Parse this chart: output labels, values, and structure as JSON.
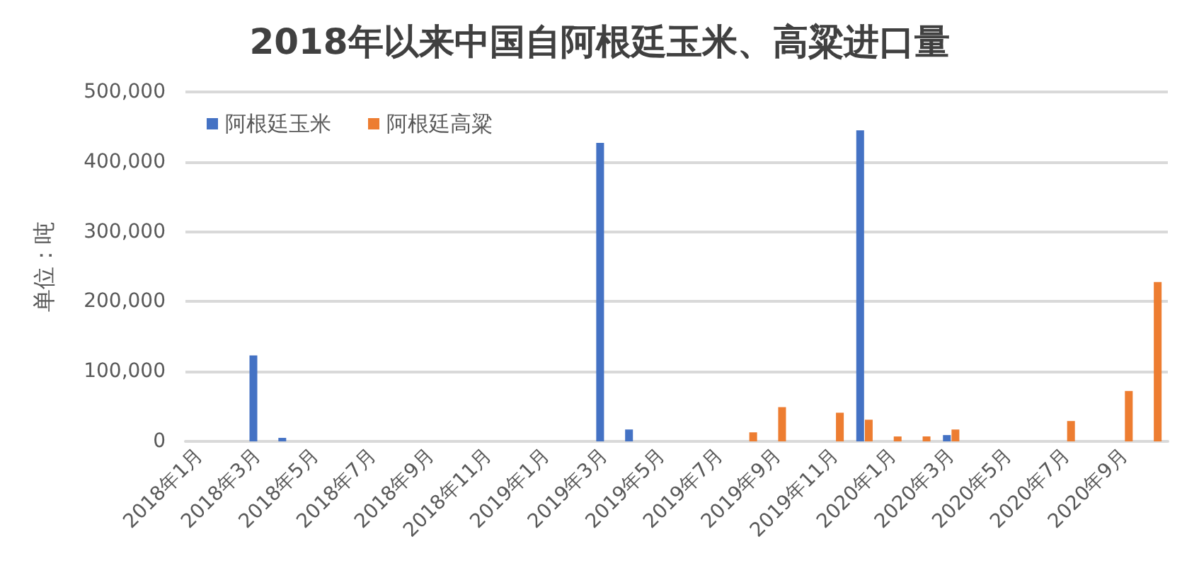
{
  "chart_data": {
    "type": "bar",
    "title": "2018年以来中国自阿根廷玉米、高粱进口量",
    "ylabel": "单位：吨",
    "categories": [
      "2018年1月",
      null,
      "2018年3月",
      null,
      "2018年5月",
      null,
      "2018年7月",
      null,
      "2018年9月",
      null,
      "2018年11月",
      null,
      "2019年1月",
      null,
      "2019年3月",
      null,
      "2019年5月",
      null,
      "2019年7月",
      null,
      "2019年9月",
      null,
      "2019年11月",
      null,
      "2020年1月",
      null,
      "2020年3月",
      null,
      "2020年5月",
      null,
      "2020年7月",
      null,
      "2020年9月",
      null
    ],
    "series": [
      {
        "name": "阿根廷玉米",
        "color": "#4472c4",
        "values": [
          null,
          null,
          123000,
          5000,
          null,
          null,
          null,
          null,
          null,
          null,
          null,
          null,
          null,
          null,
          427000,
          17000,
          null,
          null,
          null,
          null,
          null,
          null,
          null,
          445000,
          null,
          null,
          9000,
          null,
          null,
          null,
          null,
          null,
          null,
          null
        ]
      },
      {
        "name": "阿根廷高粱",
        "color": "#ed7d31",
        "values": [
          null,
          null,
          null,
          null,
          null,
          null,
          null,
          null,
          null,
          null,
          null,
          null,
          null,
          null,
          null,
          null,
          null,
          null,
          null,
          13000,
          49000,
          null,
          41000,
          31000,
          7000,
          7000,
          17000,
          null,
          null,
          null,
          29000,
          null,
          72000,
          228000
        ]
      }
    ],
    "ylim": [
      0,
      500000
    ],
    "yticks": [
      {
        "value": 0,
        "label": "0"
      },
      {
        "value": 100000,
        "label": "100,000"
      },
      {
        "value": 200000,
        "label": "200,000"
      },
      {
        "value": 300000,
        "label": "300,000"
      },
      {
        "value": 400000,
        "label": "400,000"
      },
      {
        "value": 500000,
        "label": "500,000"
      }
    ],
    "grid": "y",
    "legend": "top left"
  }
}
